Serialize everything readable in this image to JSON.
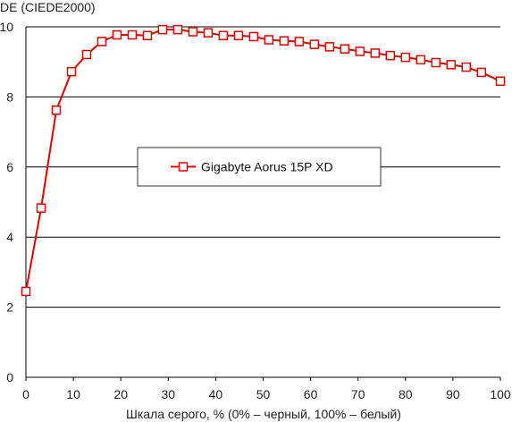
{
  "chart_data": {
    "type": "line",
    "title": "",
    "ylabel": "DE (CIEDE2000)",
    "xlabel": "Шкала серого, % (0% – черный, 100% – белый)",
    "xlim": [
      0,
      100
    ],
    "ylim": [
      0,
      10
    ],
    "xticks": [
      "0",
      "10",
      "20",
      "30",
      "40",
      "50",
      "60",
      "70",
      "80",
      "90",
      "100"
    ],
    "yticks": [
      "0",
      "2",
      "4",
      "6",
      "8",
      "10"
    ],
    "grid": "horizontal",
    "legend_placement": "center",
    "series": [
      {
        "name": "Gigabyte Aorus 15P XD",
        "color": "#dd0000",
        "marker": "hollow-square",
        "x": [
          0,
          3.2,
          6.4,
          9.6,
          12.8,
          16,
          19.2,
          22.4,
          25.6,
          28.8,
          32,
          35.2,
          38.4,
          41.6,
          44.8,
          48,
          51.2,
          54.4,
          57.6,
          60.8,
          64,
          67.2,
          70.4,
          73.6,
          76.8,
          80,
          83.2,
          86.4,
          89.6,
          92.8,
          96,
          100
        ],
        "y": [
          2.45,
          4.83,
          7.62,
          8.72,
          9.21,
          9.58,
          9.77,
          9.77,
          9.75,
          9.92,
          9.92,
          9.86,
          9.83,
          9.75,
          9.75,
          9.72,
          9.63,
          9.6,
          9.58,
          9.5,
          9.43,
          9.37,
          9.3,
          9.25,
          9.18,
          9.13,
          9.06,
          8.98,
          8.92,
          8.85,
          8.7,
          8.45
        ]
      }
    ]
  }
}
